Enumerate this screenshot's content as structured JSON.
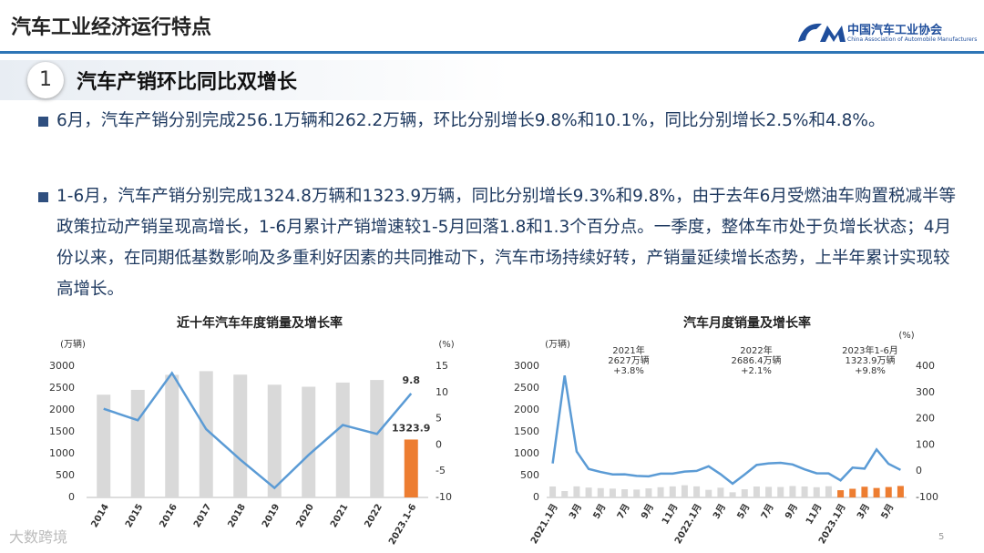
{
  "header": {
    "title": "汽车工业经济运行特点",
    "logo_cn": "中国汽车工业协会",
    "logo_en": "China Association of Automobile Manufacturers"
  },
  "section": {
    "number": "1",
    "title": "汽车产销环比同比双增长"
  },
  "bullets": [
    "6月，汽车产销分别完成256.1万辆和262.2万辆，环比分别增长9.8%和10.1%，同比分别增长2.5%和4.8%。",
    "1-6月，汽车产销分别完成1324.8万辆和1323.9万辆，同比分别增长9.3%和9.8%，由于去年6月受燃油车购置税减半等政策拉动产销呈现高增长，1-6月累计产销增速较1-5月回落1.8和1.3个百分点。一季度，整体车市处于负增长状态；4月份以来，在同期低基数影响及多重利好因素的共同推动下，汽车市场持续好转，产销量延续增长态势，上半年累计实现较高增长。"
  ],
  "footer": {
    "page": "5",
    "watermark": "大数跨境"
  },
  "chart_data": [
    {
      "type": "combo",
      "title": "近十年汽车年度销量及增长率",
      "y_label": "(万辆)",
      "y2_label": "(%)",
      "categories": [
        "2014",
        "2015",
        "2016",
        "2017",
        "2018",
        "2019",
        "2020",
        "2021",
        "2022",
        "2023.1-6"
      ],
      "series": [
        {
          "type": "bar",
          "colors": [
            "#d9d9d9",
            "#d9d9d9",
            "#d9d9d9",
            "#d9d9d9",
            "#d9d9d9",
            "#d9d9d9",
            "#d9d9d9",
            "#d9d9d9",
            "#d9d9d9",
            "#ed7d31"
          ],
          "values": [
            2349,
            2460,
            2803,
            2888,
            2808,
            2577,
            2531,
            2627,
            2686,
            1323.9
          ],
          "value_labels": [
            null,
            null,
            null,
            null,
            null,
            null,
            null,
            null,
            null,
            "1323.9"
          ]
        },
        {
          "type": "line",
          "axis": "y2",
          "color": "#5b9bd5",
          "values": [
            6.9,
            4.7,
            13.7,
            3.0,
            -2.8,
            -8.2,
            -1.9,
            3.8,
            2.1,
            9.8
          ],
          "value_labels": [
            null,
            null,
            null,
            null,
            null,
            null,
            null,
            null,
            null,
            "9.8"
          ]
        }
      ],
      "ylim": [
        0,
        3000
      ],
      "yticks": [
        0,
        500,
        1000,
        1500,
        2000,
        2500,
        3000
      ],
      "y2lim": [
        -10,
        15
      ],
      "y2ticks": [
        -10,
        -5,
        0,
        5,
        10,
        15
      ]
    },
    {
      "type": "combo",
      "title": "汽车月度销量及增长率",
      "y_label": "(万辆)",
      "y2_label": "(%)",
      "categories": [
        "2021.1月",
        null,
        "3月",
        null,
        "5月",
        null,
        "7月",
        null,
        "9月",
        null,
        "11月",
        null,
        "2022.1月",
        null,
        "3月",
        null,
        "5月",
        null,
        "7月",
        null,
        "9月",
        null,
        "11月",
        null,
        "2023.1月",
        null,
        "3月",
        null,
        "5月",
        null
      ],
      "series": [
        {
          "type": "bar",
          "colors": [
            "#d9d9d9",
            "#d9d9d9",
            "#d9d9d9",
            "#d9d9d9",
            "#d9d9d9",
            "#d9d9d9",
            "#d9d9d9",
            "#d9d9d9",
            "#d9d9d9",
            "#d9d9d9",
            "#d9d9d9",
            "#d9d9d9",
            "#d9d9d9",
            "#d9d9d9",
            "#d9d9d9",
            "#d9d9d9",
            "#d9d9d9",
            "#d9d9d9",
            "#d9d9d9",
            "#d9d9d9",
            "#d9d9d9",
            "#d9d9d9",
            "#d9d9d9",
            "#d9d9d9",
            "#ed7d31",
            "#ed7d31",
            "#ed7d31",
            "#ed7d31",
            "#ed7d31",
            "#ed7d31"
          ],
          "values": [
            250.3,
            145.5,
            252.6,
            225.2,
            212.8,
            201.5,
            186.4,
            179.9,
            207.1,
            233.2,
            252.2,
            278.6,
            253.1,
            173.7,
            223.4,
            118.1,
            186.2,
            250.2,
            242.0,
            238.3,
            261.0,
            250.5,
            232.7,
            255.6,
            164.9,
            197.6,
            245.1,
            215.9,
            238.2,
            262.2
          ]
        },
        {
          "type": "line",
          "axis": "y2",
          "color": "#5b9bd5",
          "values": [
            29.5,
            364.8,
            74.9,
            8.6,
            -3.1,
            -12.4,
            -11.9,
            -18.1,
            -19.6,
            -9.4,
            -9.1,
            -1.6,
            1.1,
            18.7,
            -11.7,
            -47.6,
            -12.6,
            23.8,
            29.7,
            32.1,
            25.7,
            6.9,
            -7.9,
            -8.4,
            -35.0,
            13.5,
            9.7,
            82.7,
            27.9,
            4.8
          ]
        }
      ],
      "annotations": [
        [
          "2021年",
          "2627万辆",
          "+3.8%"
        ],
        [
          "2022年",
          "2686.4万辆",
          "+2.1%"
        ],
        [
          "2023年1-6月",
          "1323.9万辆",
          "+9.8%"
        ]
      ],
      "ylim": [
        0,
        3000
      ],
      "yticks": [
        0,
        500,
        1000,
        1500,
        2000,
        2500,
        3000
      ],
      "y2lim": [
        -100,
        400
      ],
      "y2ticks": [
        -100,
        0,
        100,
        200,
        300,
        400
      ]
    }
  ]
}
